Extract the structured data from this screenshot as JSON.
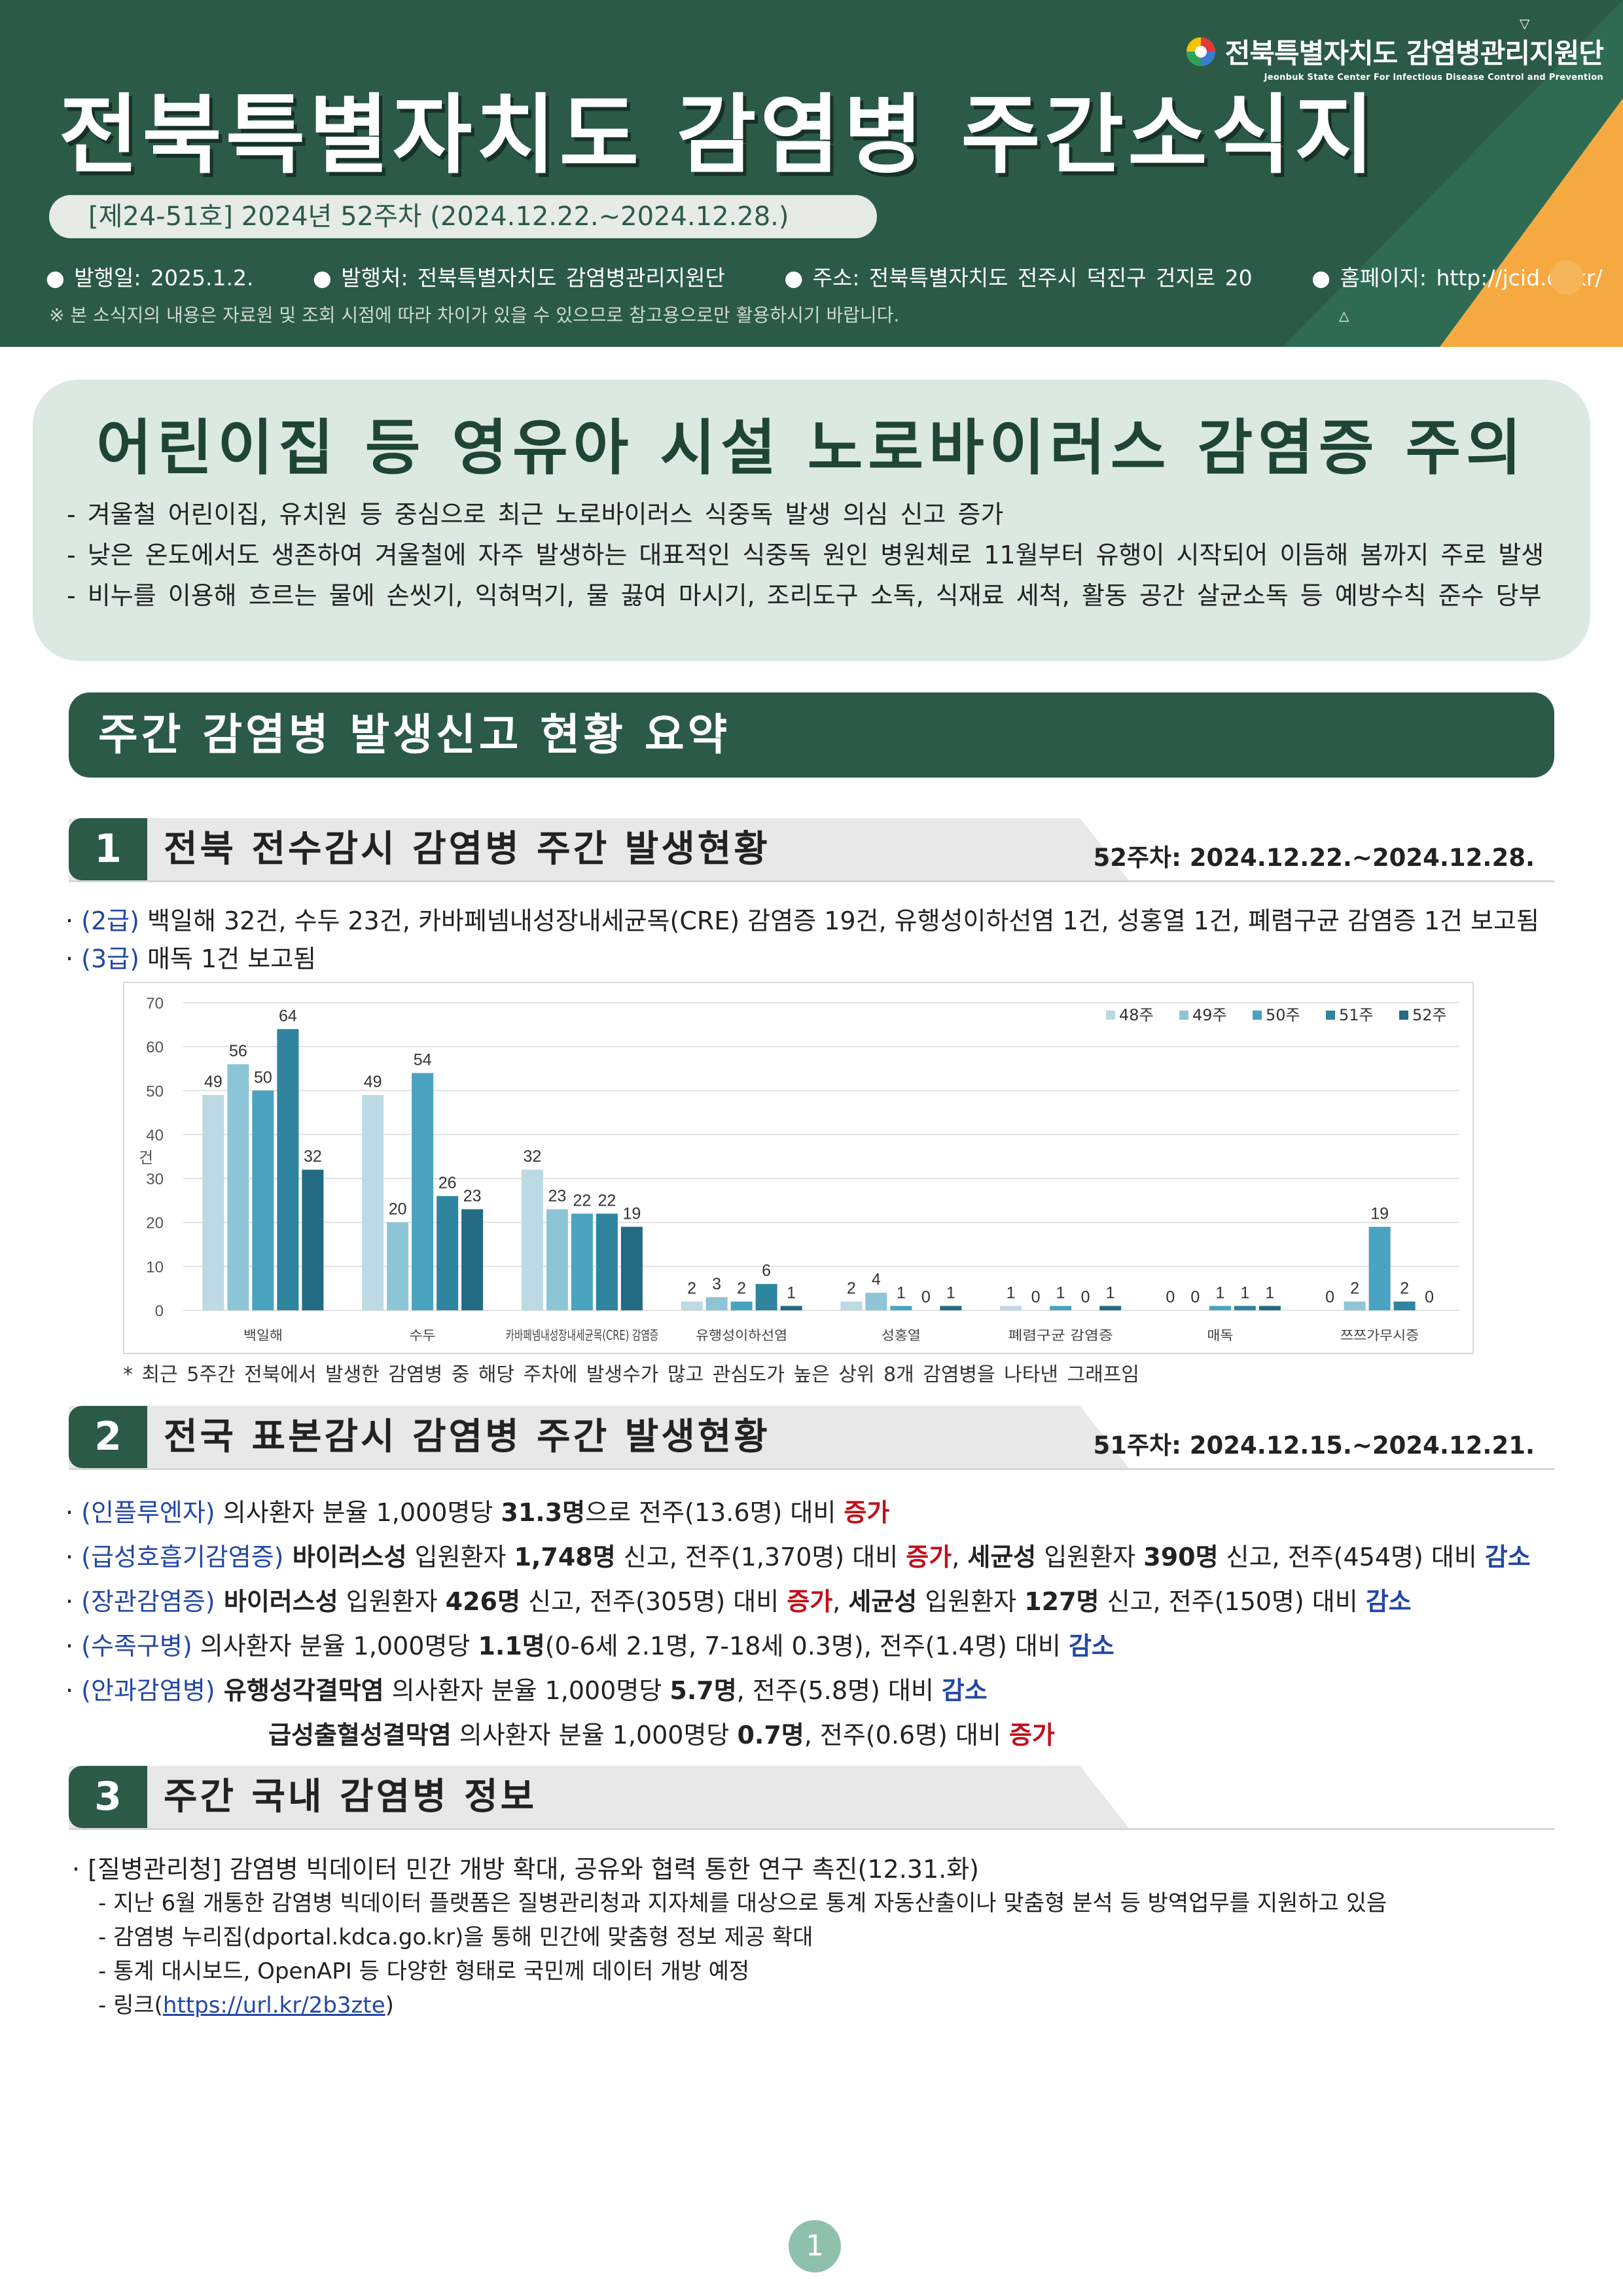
{
  "header": {
    "title": "전북특별자치도 감염병 주간소식지",
    "org_name": "전북특별자치도 감염병관리지원단",
    "org_name_en": "Jeonbuk State Center For Infectious Disease Control and Prevention",
    "issue": "[제24-51호] 2024년 52주차 (2024.12.22.~2024.12.28.)",
    "published": "발행일: 2025.1.2.",
    "publisher": "발행처: 전북특별자치도 감염병관리지원단",
    "address": "주소: 전북특별자치도 전주시 덕진구 건지로 20",
    "homepage": "홈페이지: http://jcid.or.kr/",
    "disclaimer": "※ 본 소식지의 내용은 자료원 및 조회 시점에 따라 차이가 있을 수 있으므로 참고용으로만 활용하시기 바랍니다.",
    "colors": {
      "primary": "#2b5a47",
      "accent": "#f7a941"
    }
  },
  "highlight": {
    "title": "어린이집 등 영유아 시설 노로바이러스 감염증 주의",
    "items": [
      "- 겨울철 어린이집, 유치원 등 중심으로 최근 노로바이러스 식중독 발생 의심 신고 증가",
      "- 낮은 온도에서도 생존하여 겨울철에 자주 발생하는 대표적인 식중독 원인 병원체로 11월부터 유행이 시작되어 이듬해 봄까지 주로 발생",
      "- 비누를 이용해 흐르는 물에 손씻기, 익혀먹기, 물 끓여 마시기, 조리도구 소독, 식재료 세척, 활동 공간 살균소독 등 예방수칙 준수 당부"
    ]
  },
  "summary_banner": "주간 감염병 발생신고 현황 요약",
  "section1": {
    "num": "1",
    "title": "전북 전수감시 감염병 주간 발생현황",
    "date": "52주차: 2024.12.22.~2024.12.28.",
    "b1_tag": "(2급)",
    "b1_text": " 백일해 32건, 수두 23건, 카바페넴내성장내세균목(CRE) 감염증 19건, 유행성이하선염 1건, 성홍열 1건, 폐렴구균 감염증 1건 보고됨",
    "b2_tag": "(3급)",
    "b2_text": " 매독 1건 보고됨",
    "chart_note": "* 최근 5주간 전북에서 발생한 감염병 중 해당 주차에 발생수가 많고 관심도가 높은 상위 8개 감염병을 나타낸 그래프임"
  },
  "chart_data": {
    "type": "bar",
    "ylabel": "건",
    "ylim": [
      0,
      70
    ],
    "yticks": [
      0,
      10,
      20,
      30,
      40,
      50,
      60,
      70
    ],
    "categories": [
      "백일해",
      "수두",
      "카바페넴내성장내세균목(CRE) 감염증",
      "유행성이하선염",
      "성홍열",
      "폐렴구균 감염증",
      "매독",
      "쯔쯔가무시증"
    ],
    "series": [
      {
        "name": "48주",
        "color": "#bcd9e4",
        "values": [
          49,
          49,
          32,
          2,
          2,
          1,
          0,
          0
        ]
      },
      {
        "name": "49주",
        "color": "#8ec5d6",
        "values": [
          56,
          20,
          23,
          3,
          4,
          0,
          0,
          2
        ]
      },
      {
        "name": "50주",
        "color": "#4aa3c0",
        "values": [
          50,
          54,
          22,
          2,
          1,
          1,
          1,
          19
        ]
      },
      {
        "name": "51주",
        "color": "#2f849f",
        "values": [
          64,
          26,
          22,
          6,
          0,
          0,
          1,
          2
        ]
      },
      {
        "name": "52주",
        "color": "#236b83",
        "values": [
          32,
          23,
          19,
          1,
          1,
          1,
          1,
          0
        ]
      }
    ],
    "grid": true,
    "legend": "top-right"
  },
  "section2": {
    "num": "2",
    "title": "전국 표본감시 감염병 주간 발생현황",
    "date": "51주차: 2024.12.15.~2024.12.21.",
    "flu_tag": "(인플루엔자)",
    "flu_t1": " 의사환자 분율 1,000명당 ",
    "flu_b1": "31.3명",
    "flu_t2": "으로 전주(13.6명) 대비 ",
    "flu_inc": "증가",
    "ari_tag": "(급성호흡기감염증)",
    "ari_b1": " 바이러스성",
    "ari_t1": " 입원환자 ",
    "ari_b2": "1,748명",
    "ari_t2": " 신고, 전주(1,370명) 대비 ",
    "ari_inc": "증가",
    "ari_t3": ", ",
    "ari_b3": "세균성",
    "ari_t4": " 입원환자 ",
    "ari_b4": "390명",
    "ari_t5": " 신고, 전주(454명) 대비 ",
    "ari_dec": "감소",
    "gi_tag": "(장관감염증)",
    "gi_b1": " 바이러스성",
    "gi_t1": " 입원환자 ",
    "gi_b2": "426명",
    "gi_t2": " 신고, 전주(305명) 대비 ",
    "gi_inc": "증가",
    "gi_t3": ", ",
    "gi_b3": "세균성",
    "gi_t4": " 입원환자 ",
    "gi_b4": "127명",
    "gi_t5": " 신고, 전주(150명) 대비 ",
    "gi_dec": "감소",
    "hfmd_tag": "(수족구병)",
    "hfmd_t1": " 의사환자 분율 1,000명당 ",
    "hfmd_b1": "1.1명",
    "hfmd_t2": "(0-6세 2.1명, 7-18세 0.3명), 전주(1.4명) 대비 ",
    "hfmd_dec": "감소",
    "eye_tag": "(안과감염병)",
    "eye_b1": " 유행성각결막염",
    "eye_t1": " 의사환자 분율 1,000명당 ",
    "eye_b2": "5.7명",
    "eye_t2": ", 전주(5.8명) 대비 ",
    "eye_dec": "감소",
    "eye2_b1": "급성출혈성결막염",
    "eye2_t1": " 의사환자 분율 1,000명당 ",
    "eye2_b2": "0.7명",
    "eye2_t2": ", 전주(0.6명) 대비 ",
    "eye2_inc": "증가"
  },
  "section3": {
    "num": "3",
    "title": "주간 국내 감염병 정보",
    "headline": "· [질병관리청] 감염병 빅데이터 민간 개방 확대, 공유와 협력 통한 연구 촉진(12.31.화)",
    "sub1": "- 지난 6월 개통한 감염병 빅데이터 플랫폼은 질병관리청과 지자체를 대상으로 통계 자동산출이나 맞춤형 분석 등 방역업무를 지원하고 있음",
    "sub2": "- 감염병 누리집(dportal.kdca.go.kr)을 통해 민간에 맞춤형 정보 제공 확대",
    "sub3": "- 통계 대시보드, OpenAPI 등 다양한 형태로 국민께 데이터 개방 예정",
    "sub4_pre": "- 링크(",
    "sub4_link": "https://url.kr/2b3zte",
    "sub4_post": ")"
  },
  "page_number": "1"
}
